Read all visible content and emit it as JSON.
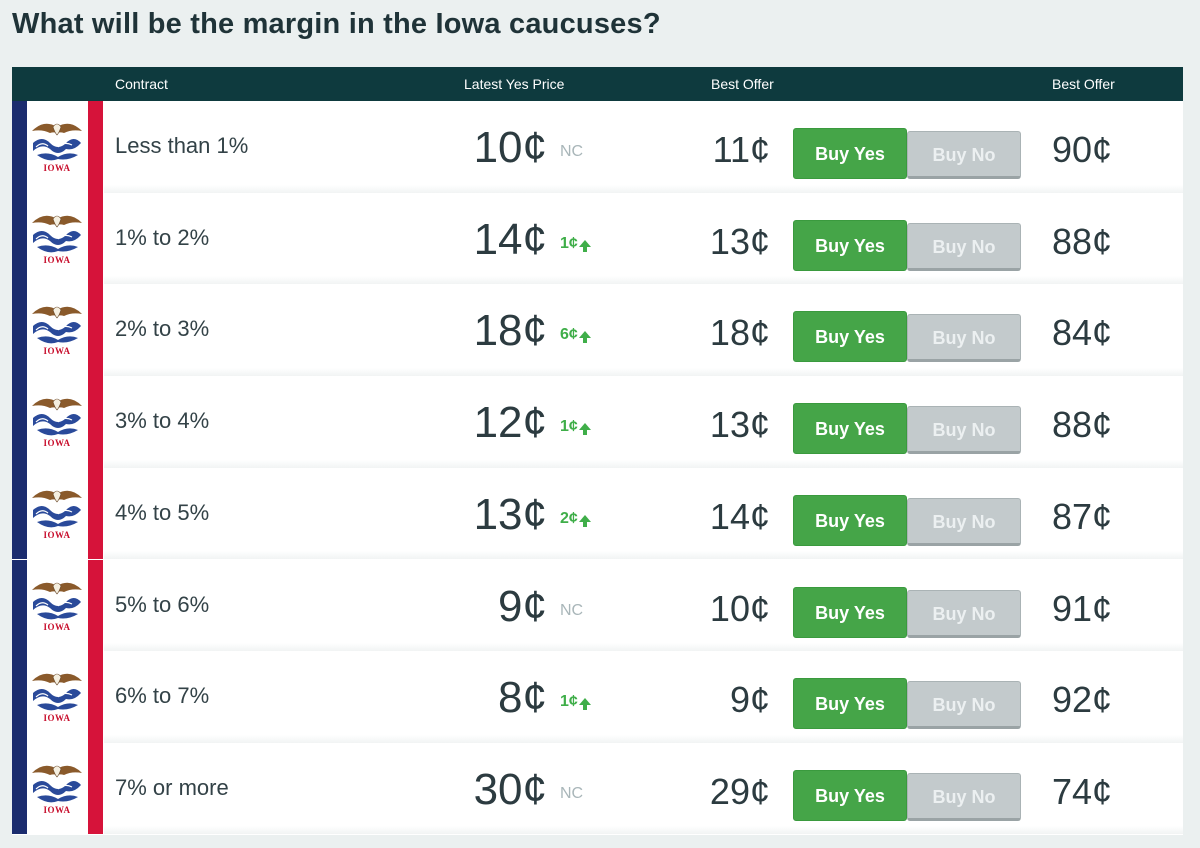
{
  "page": {
    "title": "What will be the margin in the Iowa caucuses?"
  },
  "table": {
    "headers": {
      "contract": "Contract",
      "latest_yes_price": "Latest Yes Price",
      "best_offer_yes": "Best Offer",
      "best_offer_no": "Best Offer"
    },
    "flag_text": "IOWA",
    "rows": [
      {
        "contract": "Less than 1%",
        "latest": "10¢",
        "change": "NC",
        "direction": "none",
        "best_offer_yes": "11¢",
        "buy_yes": "Buy Yes",
        "buy_no": "Buy No",
        "best_offer_no": "90¢"
      },
      {
        "contract": "1% to 2%",
        "latest": "14¢",
        "change": "1¢",
        "direction": "up",
        "best_offer_yes": "13¢",
        "buy_yes": "Buy Yes",
        "buy_no": "Buy No",
        "best_offer_no": "88¢"
      },
      {
        "contract": "2% to 3%",
        "latest": "18¢",
        "change": "6¢",
        "direction": "up",
        "best_offer_yes": "18¢",
        "buy_yes": "Buy Yes",
        "buy_no": "Buy No",
        "best_offer_no": "84¢"
      },
      {
        "contract": "3% to 4%",
        "latest": "12¢",
        "change": "1¢",
        "direction": "up",
        "best_offer_yes": "13¢",
        "buy_yes": "Buy Yes",
        "buy_no": "Buy No",
        "best_offer_no": "88¢"
      },
      {
        "contract": "4% to 5%",
        "latest": "13¢",
        "change": "2¢",
        "direction": "up",
        "best_offer_yes": "14¢",
        "buy_yes": "Buy Yes",
        "buy_no": "Buy No",
        "best_offer_no": "87¢"
      },
      {
        "contract": "5% to 6%",
        "latest": "9¢",
        "change": "NC",
        "direction": "none",
        "best_offer_yes": "10¢",
        "buy_yes": "Buy Yes",
        "buy_no": "Buy No",
        "best_offer_no": "91¢"
      },
      {
        "contract": "6% to 7%",
        "latest": "8¢",
        "change": "1¢",
        "direction": "up",
        "best_offer_yes": "9¢",
        "buy_yes": "Buy Yes",
        "buy_no": "Buy No",
        "best_offer_no": "92¢"
      },
      {
        "contract": "7% or more",
        "latest": "30¢",
        "change": "NC",
        "direction": "none",
        "best_offer_yes": "29¢",
        "buy_yes": "Buy Yes",
        "buy_no": "Buy No",
        "best_offer_no": "74¢"
      }
    ]
  },
  "colors": {
    "header_bg": "#0e3a3e",
    "buy_yes": "#45a548",
    "buy_no": "#c3cacc",
    "change_up": "#3fae49",
    "change_nc": "#a9b6b9",
    "flag_blue": "#1b2c6e",
    "flag_red": "#d6133a"
  }
}
